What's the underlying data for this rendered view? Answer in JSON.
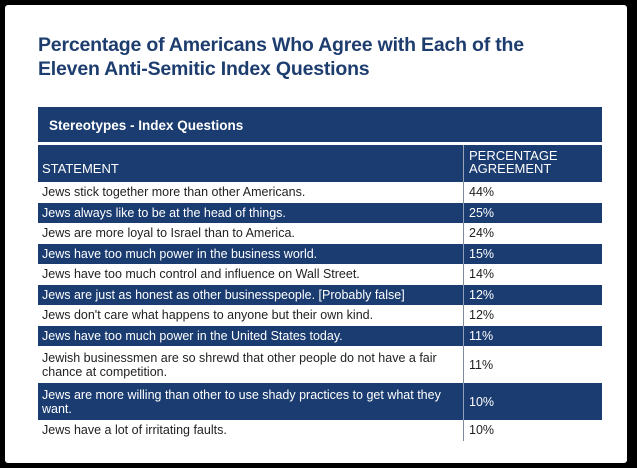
{
  "chart_data": {
    "type": "table",
    "title_lines": [
      "Percentage of Americans Who Agree with Each of the",
      "Eleven Anti-Semitic Index Questions"
    ],
    "section_label": "Stereotypes - Index Questions",
    "columns": [
      "STATEMENT",
      "PERCENTAGE AGREEMENT"
    ],
    "columns_display": {
      "statement": "STATEMENT",
      "agreement_line1": "PERCENTAGE",
      "agreement_line2": "AGREEMENT"
    },
    "rows": [
      {
        "statement": "Jews stick together more than other Americans.",
        "value": "44%"
      },
      {
        "statement": "Jews always like to be at the head of things.",
        "value": "25%"
      },
      {
        "statement": "Jews are more loyal to Israel than to America.",
        "value": "24%"
      },
      {
        "statement": "Jews have too much power in the business world.",
        "value": "15%"
      },
      {
        "statement": "Jews have too much control and influence on Wall Street.",
        "value": "14%"
      },
      {
        "statement": "Jews are just as honest as other businesspeople. [Probably false]",
        "value": "12%"
      },
      {
        "statement": "Jews don't care what happens to anyone but their own kind.",
        "value": "12%"
      },
      {
        "statement": "Jews have too much power in the United States today.",
        "value": "11%"
      },
      {
        "statement": "Jewish businessmen are so shrewd that other people do not have a fair chance at competition.",
        "value": "11%"
      },
      {
        "statement": "Jews are more willing than other to use shady practices to get what they want.",
        "value": "10%"
      },
      {
        "statement": "Jews have a lot of irritating faults.",
        "value": "10%"
      }
    ],
    "colors": {
      "title": "#1e3d6f",
      "header_bg": "#1b3c70",
      "alt_row_bg": "#1b3c70"
    }
  }
}
